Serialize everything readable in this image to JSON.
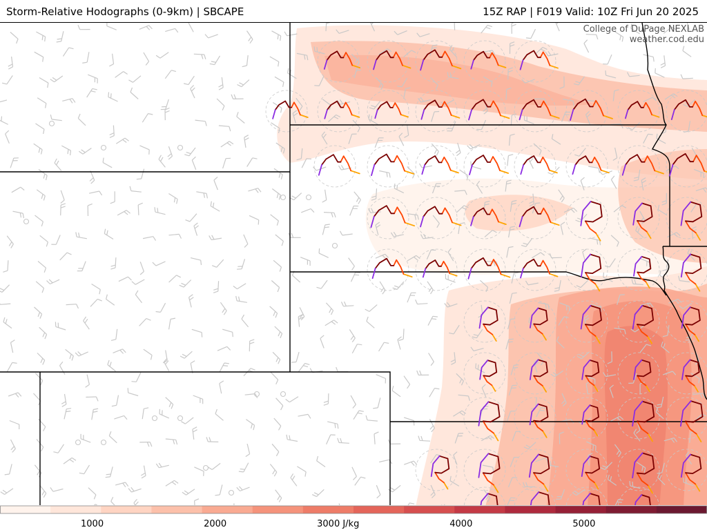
{
  "header": {
    "title_left": "Storm-Relative Hodographs (0-9km) | SBCAPE",
    "title_right": "15Z RAP | F019 Valid: 10Z Fri Jun 20 2025"
  },
  "credit": {
    "line1": "College of DuPage NEXLAB",
    "line2": "weather.cod.edu"
  },
  "colorbar": {
    "unit": "J/kg",
    "min": 250,
    "max": 6000,
    "labels": [
      {
        "value": 1000,
        "text": "1000"
      },
      {
        "value": 2000,
        "text": "2000"
      },
      {
        "value": 3000,
        "text": "3000 J/kg"
      },
      {
        "value": 4000,
        "text": "4000"
      },
      {
        "value": 5000,
        "text": "5000"
      }
    ],
    "colors": [
      "#fff3ec",
      "#ffe6da",
      "#ffd4c2",
      "#fcc0aa",
      "#f9aa92",
      "#f5937b",
      "#ee7c68",
      "#e4655a",
      "#d64f4f",
      "#c43a45",
      "#ae2a3d",
      "#962036",
      "#7e1b32",
      "#6b1830"
    ]
  },
  "colors": {
    "hodo_0_1km": "#8a2be2",
    "hodo_1_3km": "#7a0000",
    "hodo_3_6km": "#ff4500",
    "hodo_6_9km": "#ffa500",
    "barb": "#c8c8c8",
    "boundary": "#000000"
  }
}
